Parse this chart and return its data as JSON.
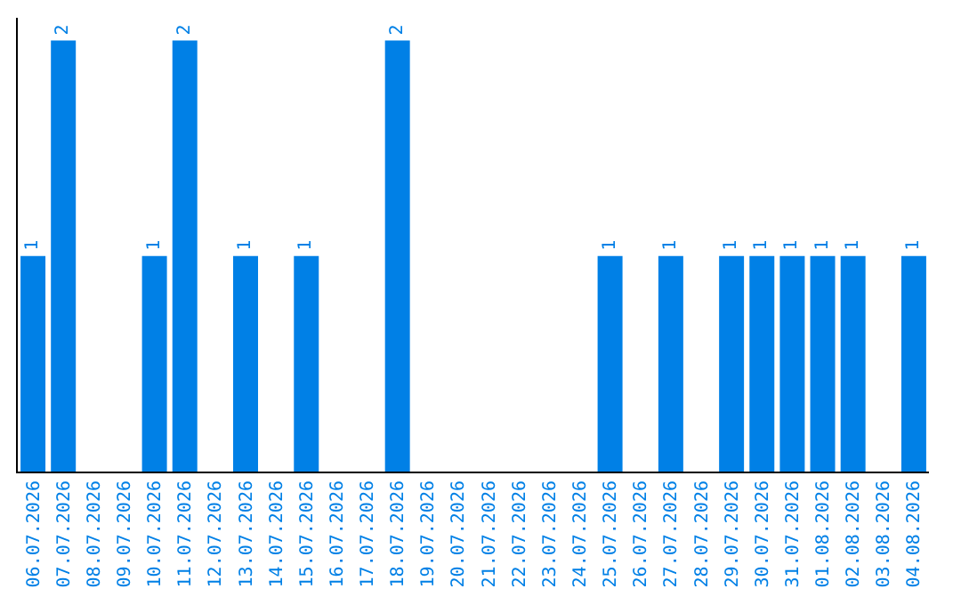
{
  "chart_data": {
    "type": "bar",
    "color": "#0080e6",
    "categories": [
      "06.07.2026",
      "07.07.2026",
      "08.07.2026",
      "09.07.2026",
      "10.07.2026",
      "11.07.2026",
      "12.07.2026",
      "13.07.2026",
      "14.07.2026",
      "15.07.2026",
      "16.07.2026",
      "17.07.2026",
      "18.07.2026",
      "19.07.2026",
      "20.07.2026",
      "21.07.2026",
      "22.07.2026",
      "23.07.2026",
      "24.07.2026",
      "25.07.2026",
      "26.07.2026",
      "27.07.2026",
      "28.07.2026",
      "29.07.2026",
      "30.07.2026",
      "31.07.2026",
      "01.08.2026",
      "02.08.2026",
      "03.08.2026",
      "04.08.2026"
    ],
    "values": [
      1,
      2,
      0,
      0,
      1,
      2,
      0,
      1,
      0,
      1,
      0,
      0,
      2,
      0,
      0,
      0,
      0,
      0,
      0,
      1,
      0,
      1,
      0,
      1,
      1,
      1,
      1,
      1,
      0,
      1
    ],
    "value_labels": [
      "1",
      "2",
      null,
      null,
      "1",
      "2",
      null,
      "1",
      null,
      "1",
      null,
      null,
      "2",
      null,
      null,
      null,
      null,
      null,
      null,
      "1",
      null,
      "1",
      null,
      "1",
      "1",
      "1",
      "1",
      "1",
      null,
      "1"
    ],
    "orientation": "vertical"
  }
}
